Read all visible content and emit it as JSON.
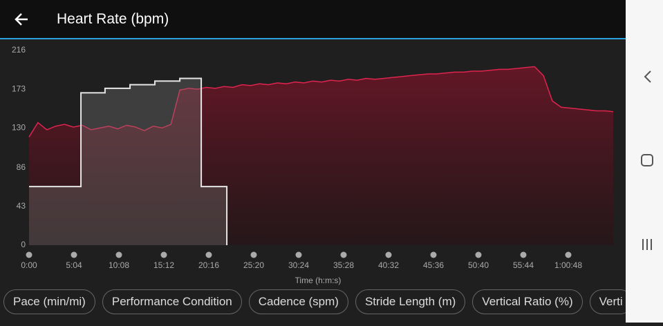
{
  "header": {
    "title": "Heart Rate (bpm)"
  },
  "chart_data": {
    "type": "area",
    "xlabel": "Time (h:m:s)",
    "xlim": [
      0,
      3952
    ],
    "ylim": [
      0,
      216
    ],
    "yticks": [
      0,
      43,
      86,
      130,
      173,
      216
    ],
    "xticks": [
      {
        "value": 0,
        "label": "0:00"
      },
      {
        "value": 304,
        "label": "5:04"
      },
      {
        "value": 608,
        "label": "10:08"
      },
      {
        "value": 912,
        "label": "15:12"
      },
      {
        "value": 1216,
        "label": "20:16"
      },
      {
        "value": 1520,
        "label": "25:20"
      },
      {
        "value": 1824,
        "label": "30:24"
      },
      {
        "value": 2128,
        "label": "35:28"
      },
      {
        "value": 2432,
        "label": "40:32"
      },
      {
        "value": 2736,
        "label": "45:36"
      },
      {
        "value": 3040,
        "label": "50:40"
      },
      {
        "value": 3344,
        "label": "55:44"
      },
      {
        "value": 3648,
        "label": "1:00:48"
      }
    ],
    "series": [
      {
        "color": "#e0244f",
        "x": [
          0,
          60,
          120,
          180,
          240,
          300,
          360,
          420,
          480,
          540,
          600,
          660,
          720,
          780,
          840,
          900,
          960,
          1020,
          1080,
          1140,
          1200,
          1260,
          1320,
          1380,
          1440,
          1500,
          1560,
          1620,
          1680,
          1740,
          1800,
          1860,
          1920,
          1980,
          2040,
          2100,
          2160,
          2220,
          2280,
          2340,
          2400,
          2460,
          2520,
          2580,
          2640,
          2700,
          2760,
          2820,
          2880,
          2940,
          3000,
          3060,
          3120,
          3180,
          3240,
          3300,
          3360,
          3420,
          3480,
          3540,
          3600,
          3660,
          3720,
          3780,
          3840,
          3900,
          3952
        ],
        "values": [
          120,
          136,
          128,
          132,
          134,
          131,
          133,
          128,
          130,
          132,
          129,
          133,
          131,
          127,
          132,
          130,
          134,
          172,
          174,
          173,
          175,
          174,
          176,
          175,
          178,
          177,
          179,
          178,
          180,
          179,
          181,
          180,
          182,
          181,
          183,
          182,
          184,
          183,
          185,
          184,
          185,
          186,
          187,
          188,
          189,
          190,
          190,
          191,
          192,
          192,
          193,
          193,
          194,
          195,
          195,
          196,
          197,
          198,
          188,
          160,
          153,
          152,
          151,
          150,
          149,
          149,
          148
        ]
      },
      {
        "color": "#e6e6e6",
        "step": "post",
        "x": [
          0,
          351,
          514,
          683,
          851,
          1020,
          1165,
          1338
        ],
        "values": [
          65,
          169,
          174,
          178,
          182,
          185,
          65,
          0
        ]
      }
    ]
  },
  "chips": [
    "Pace (min/mi)",
    "Performance Condition",
    "Cadence (spm)",
    "Stride Length (m)",
    "Vertical Ratio (%)",
    "Verti"
  ]
}
